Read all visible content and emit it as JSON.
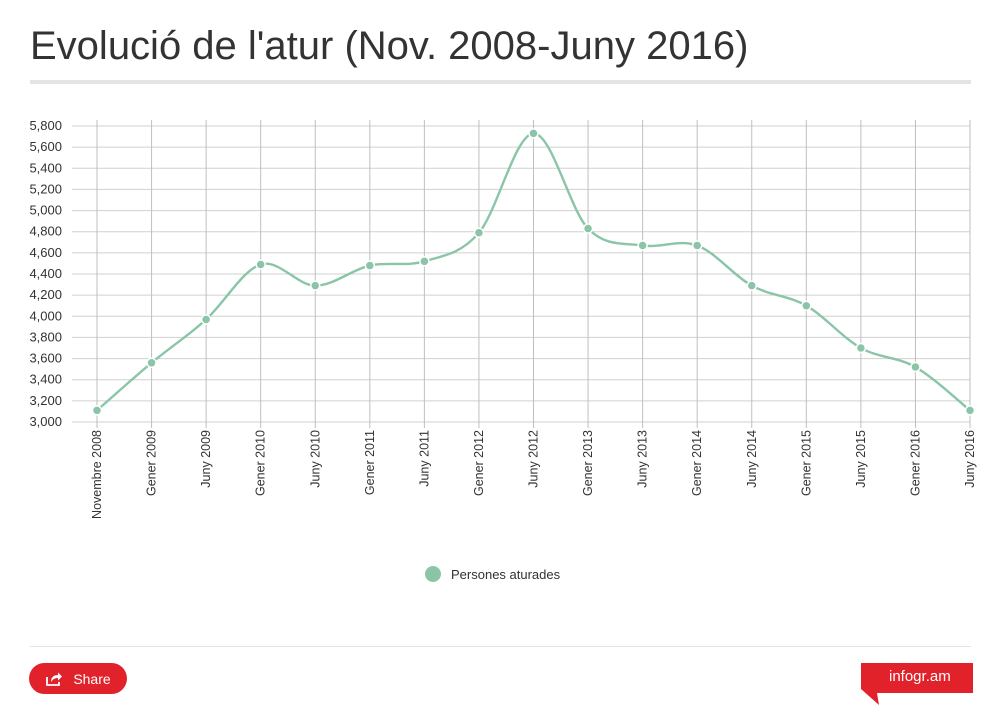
{
  "title": "Evolució de l'atur (Nov. 2008-Juny 2016)",
  "chart_data": {
    "type": "line",
    "title": "Evolució de l'atur (Nov. 2008-Juny 2016)",
    "categories": [
      "Novembre 2008",
      "Gener 2009",
      "Juny 2009",
      "Gener 2010",
      "Juny 2010",
      "Gener 2011",
      "Juny 2011",
      "Gener 2012",
      "Juny 2012",
      "Gener 2013",
      "Juny 2013",
      "Gener 2014",
      "Juny 2014",
      "Gener 2015",
      "Juny 2015",
      "Gener 2016",
      "Juny 2016"
    ],
    "series": [
      {
        "name": "Persones aturades",
        "color": "#8bc5a7",
        "values": [
          3110,
          3560,
          3970,
          4490,
          4290,
          4480,
          4520,
          4790,
          5730,
          4830,
          4670,
          4670,
          4290,
          4100,
          3700,
          3520,
          3110
        ]
      }
    ],
    "yticks": [
      "3,000",
      "3,200",
      "3,400",
      "3,600",
      "3,800",
      "4,000",
      "4,200",
      "4,400",
      "4,600",
      "4,800",
      "5,000",
      "5,200",
      "5,400",
      "5,600",
      "5,800"
    ],
    "ylim": [
      3000,
      5800
    ],
    "grid": true,
    "smooth": true,
    "legend_position": "bottom-center"
  },
  "legend": {
    "label": "Persones aturades",
    "color": "#8bc5a7"
  },
  "footer": {
    "share_label": "Share",
    "brand_label": "infogr.am",
    "brand_color": "#e2222b"
  }
}
